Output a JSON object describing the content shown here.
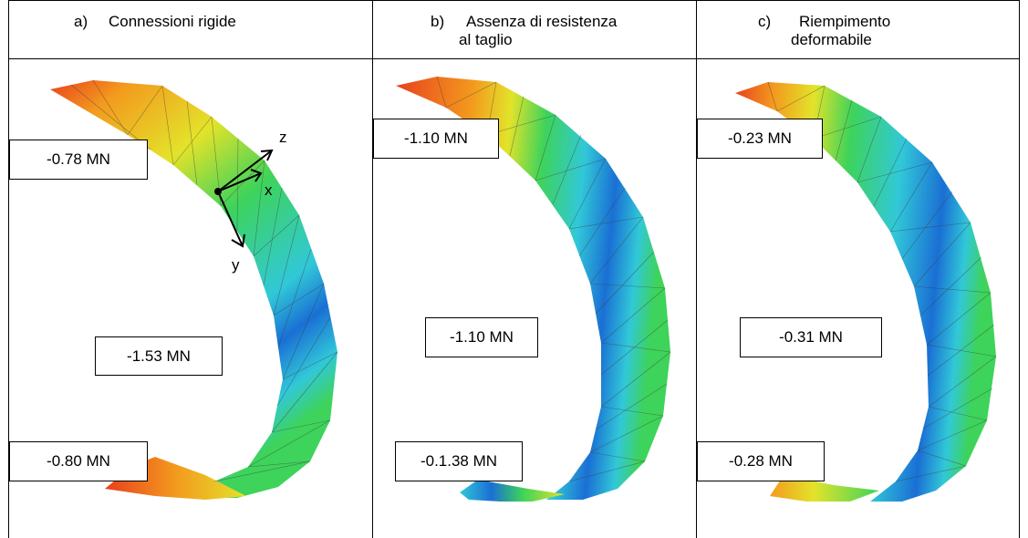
{
  "panels": [
    {
      "letter": "a)",
      "title_lines": [
        "Connessioni rigide"
      ],
      "labels": {
        "top": "-0.78 MN",
        "middle": "-1.53 MN",
        "bottom": "-0.80 MN"
      },
      "axes": {
        "z": "z",
        "x": "x",
        "y": "y"
      }
    },
    {
      "letter": "b)",
      "title_lines": [
        "Assenza di resistenza",
        "al taglio"
      ],
      "labels": {
        "top": "-1.10 MN",
        "middle": "-1.10 MN",
        "bottom": "-0.1.38 MN"
      }
    },
    {
      "letter": "c)",
      "title_lines": [
        "Riempimento",
        "deformabile"
      ],
      "labels": {
        "top": "-0.23 MN",
        "middle": "-0.31 MN",
        "bottom": "-0.28 MN"
      }
    }
  ],
  "colors": {
    "red": "#e8401c",
    "orange": "#f39a1e",
    "yellow": "#e3e32a",
    "green": "#3ed35a",
    "cyan": "#31c8d8",
    "blue": "#1a6fd4"
  }
}
